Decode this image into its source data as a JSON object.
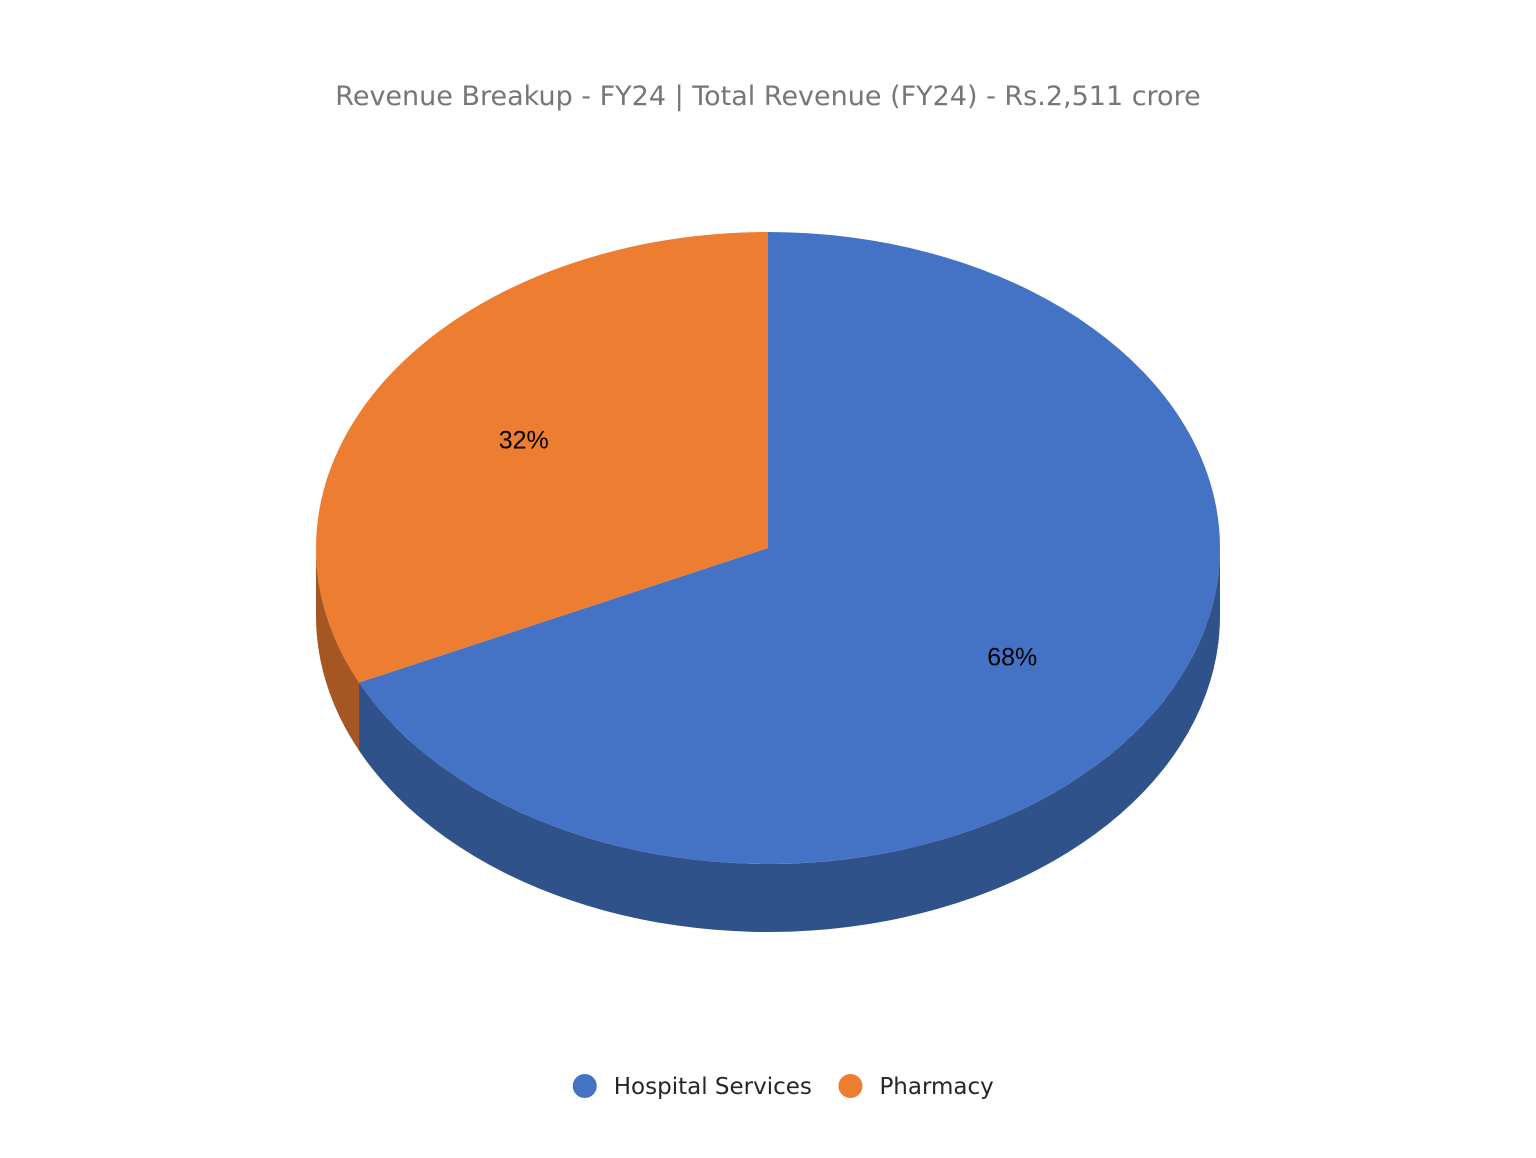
{
  "chart_data": {
    "type": "pie",
    "title": "Revenue Breakup - FY24 | Total Revenue (FY24) - Rs.2,511 crore",
    "style": "3d",
    "legend_position": "bottom",
    "slices": [
      {
        "name": "Hospital Services",
        "value": 68,
        "label": "68%",
        "color": "#4472C4",
        "side_color": "#2F528A"
      },
      {
        "name": "Pharmacy",
        "value": 32,
        "label": "32%",
        "color": "#ED7D31",
        "side_color": "#A55623"
      }
    ]
  }
}
